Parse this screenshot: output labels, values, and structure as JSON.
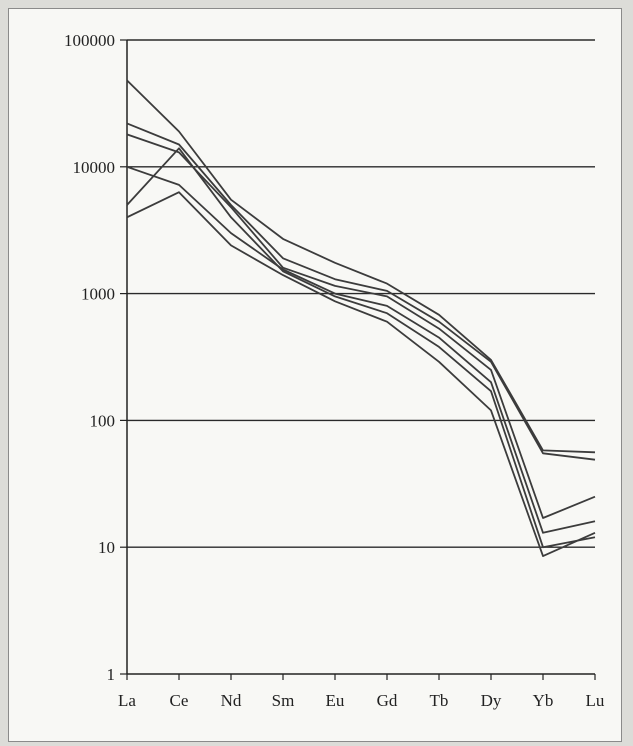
{
  "chart_data": {
    "type": "line",
    "title": "",
    "xlabel": "",
    "ylabel": "",
    "y_scale": "log",
    "ylim": [
      1,
      100000
    ],
    "grid": true,
    "legend": "none",
    "categories": [
      "La",
      "Ce",
      "Nd",
      "Sm",
      "Eu",
      "Gd",
      "Tb",
      "Dy",
      "Yb",
      "Lu"
    ],
    "y_ticks": [
      1,
      10,
      100,
      1000,
      10000,
      100000
    ],
    "y_tick_labels": [
      "1",
      "10",
      "100",
      "1000",
      "10000",
      "100000"
    ],
    "series": [
      {
        "values": [
          48000,
          19000,
          5500,
          2700,
          1750,
          1200,
          680,
          300,
          58,
          56
        ]
      },
      {
        "values": [
          22000,
          15000,
          5000,
          1900,
          1300,
          1050,
          600,
          290,
          55,
          49
        ]
      },
      {
        "values": [
          18000,
          13000,
          4800,
          1600,
          1150,
          950,
          530,
          250,
          17,
          25
        ]
      },
      {
        "values": [
          10000,
          7200,
          3000,
          1550,
          1000,
          800,
          450,
          200,
          13,
          16
        ]
      },
      {
        "values": [
          5000,
          14000,
          4000,
          1500,
          950,
          700,
          380,
          170,
          10,
          12
        ]
      },
      {
        "values": [
          4000,
          6300,
          2400,
          1400,
          870,
          600,
          290,
          120,
          8.5,
          13
        ]
      }
    ],
    "colors": {
      "line": "#3c3c3c",
      "grid": "#2a2a2a",
      "axis": "#222222",
      "text": "#222222"
    }
  }
}
